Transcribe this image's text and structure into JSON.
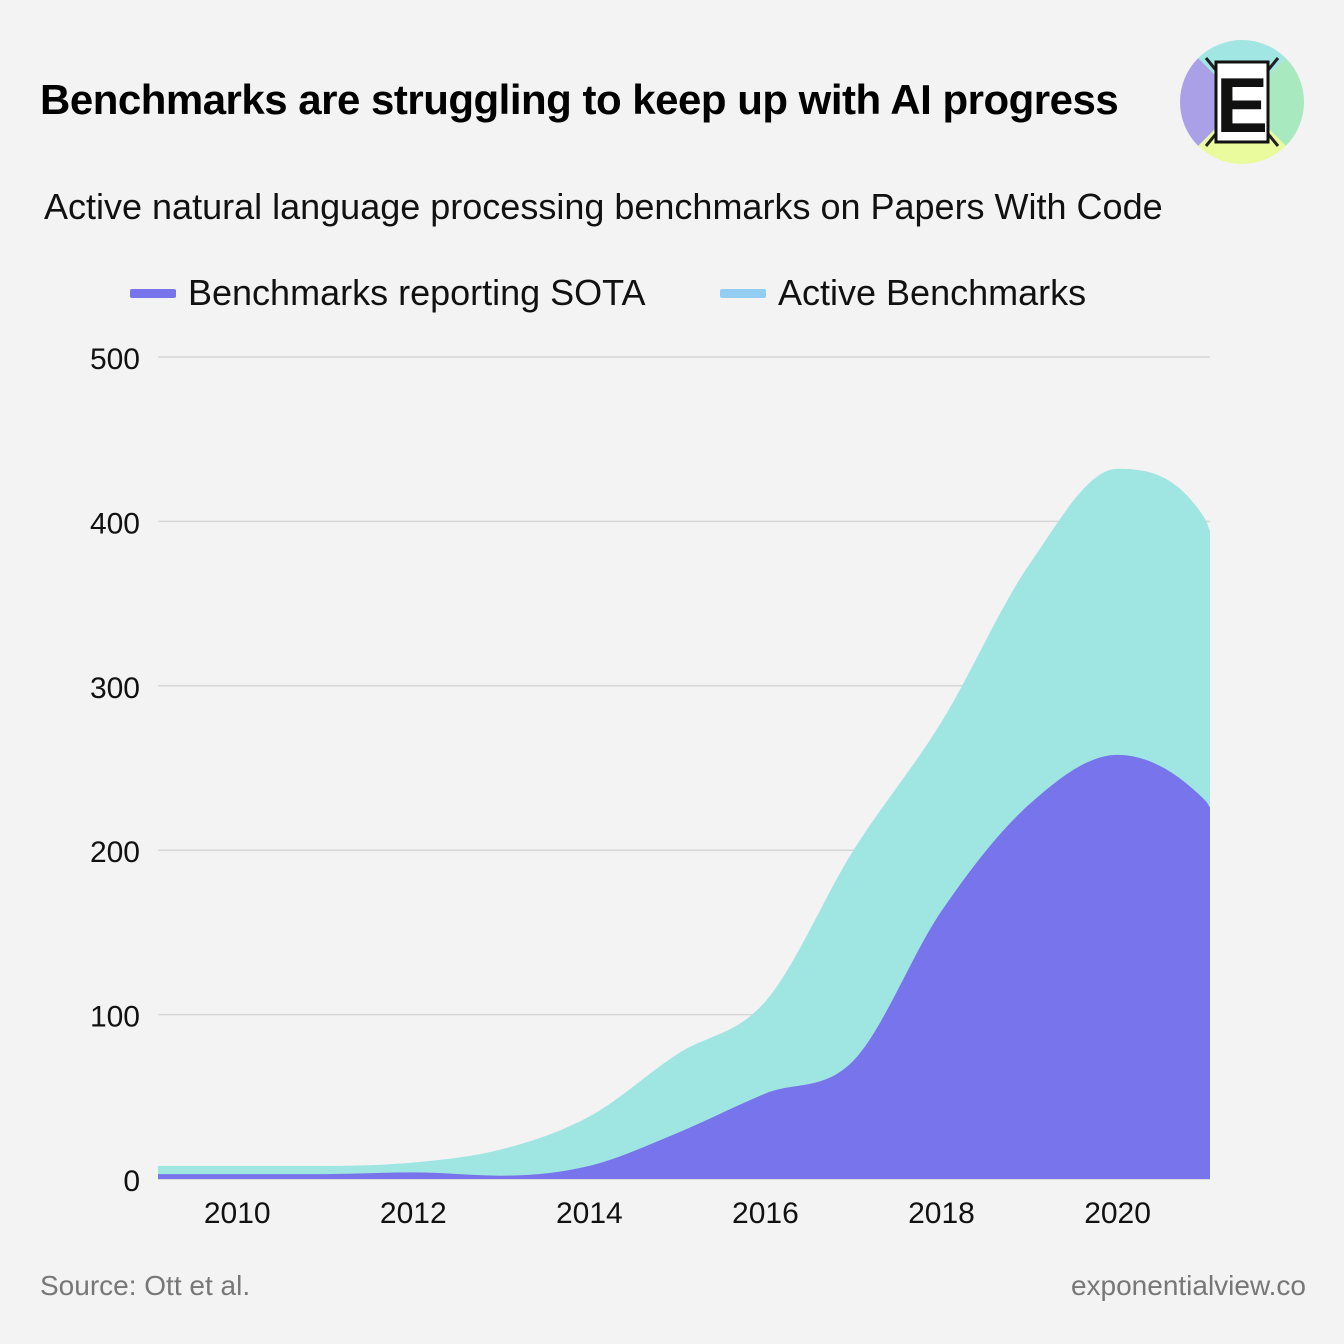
{
  "header": {
    "title": "Benchmarks are struggling to keep up with AI progress",
    "subtitle": "Active natural language processing benchmarks on Papers With Code",
    "logo_letter": "E",
    "logo_icon": "exponential-view-logo-icon"
  },
  "footer": {
    "source": "Source: Ott et al.",
    "site": "exponentialview.co"
  },
  "colors": {
    "background": "#f3f3f3",
    "sota": "#7774ec",
    "active": "#9fe5e2",
    "active_legend": "#94cdf2",
    "grid": "#d6d6d6"
  },
  "chart_data": {
    "type": "area",
    "stacked": false,
    "x_ticks": [
      "2010",
      "2012",
      "2014",
      "2016",
      "2018",
      "2020"
    ],
    "y_ticks": [
      "0",
      "100",
      "200",
      "300",
      "400",
      "500"
    ],
    "ylim": [
      0,
      500
    ],
    "xlim": [
      2009.1,
      2021.05
    ],
    "grid": true,
    "legend_position": "top",
    "series": [
      {
        "name": "Active Benchmarks",
        "x": [
          2009.1,
          2010,
          2011,
          2012,
          2013,
          2014,
          2015,
          2016,
          2017,
          2018,
          2019,
          2020,
          2021,
          2021.05
        ],
        "values": [
          8,
          8,
          8,
          10,
          18,
          38,
          76,
          108,
          200,
          278,
          374,
          432,
          401,
          394
        ]
      },
      {
        "name": "Benchmarks reporting SOTA",
        "x": [
          2009.1,
          2010,
          2011,
          2012,
          2013,
          2014,
          2015,
          2016,
          2017,
          2018,
          2019,
          2020,
          2021,
          2021.05
        ],
        "values": [
          3,
          3,
          3,
          4,
          2,
          8,
          28,
          52,
          72,
          163,
          228,
          258,
          230,
          226
        ]
      }
    ]
  }
}
